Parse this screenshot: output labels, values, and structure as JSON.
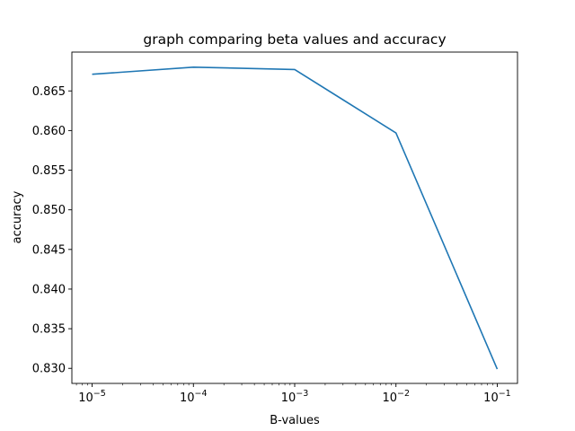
{
  "chart_data": {
    "type": "line",
    "title": "graph comparing beta values and accuracy",
    "xlabel": "B-values",
    "ylabel": "accuracy",
    "x_scale": "log",
    "x": [
      1e-05,
      0.0001,
      0.001,
      0.01,
      0.1
    ],
    "x_tick_labels": [
      {
        "base": "10",
        "exp": "−5"
      },
      {
        "base": "10",
        "exp": "−4"
      },
      {
        "base": "10",
        "exp": "−3"
      },
      {
        "base": "10",
        "exp": "−2"
      },
      {
        "base": "10",
        "exp": "−1"
      }
    ],
    "series": [
      {
        "values": [
          0.8671,
          0.868,
          0.8677,
          0.8597,
          0.8299
        ],
        "color": "#1f77b4"
      }
    ],
    "y_ticks": [
      "0.830",
      "0.835",
      "0.840",
      "0.845",
      "0.850",
      "0.855",
      "0.860",
      "0.865"
    ],
    "ylim": [
      0.8281,
      0.8699
    ],
    "grid": false
  }
}
